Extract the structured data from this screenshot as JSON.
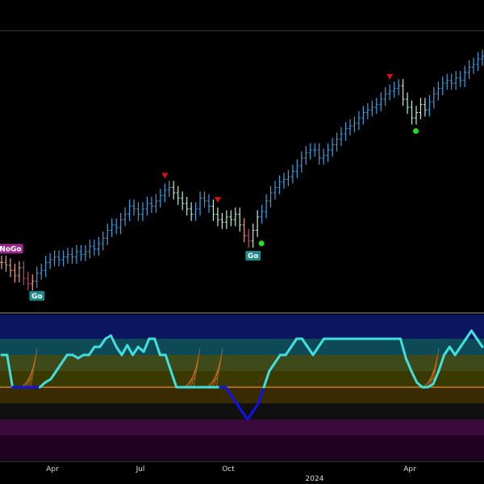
{
  "colors": {
    "background": "#000000",
    "strong_up": "#3aa0e0",
    "weak_up": "#b8f0d8",
    "weak_down": "#f0a080",
    "strong_down": "#c0487a",
    "go_badge": "#1e8a8a",
    "nogo_badge": "#9a2a8a",
    "go_dot": "#22dd22",
    "exhaustion_triangle": "#dd1111",
    "oscillator_up": "#40e0e0",
    "oscillator_strong_down": "#1111ee",
    "zero_line": "#e8901a",
    "cluster_lines": "#e07820"
  },
  "badges": [
    {
      "label": "NoGo",
      "kind": "nogo"
    },
    {
      "label": "Go",
      "kind": "go"
    },
    {
      "label": "Go",
      "kind": "go"
    }
  ],
  "x_axis": {
    "tick_labels": [
      "Apr",
      "Jul",
      "Oct",
      "Apr"
    ],
    "year_label": "2024"
  },
  "chart_data": [
    {
      "type": "ohlc",
      "title": "",
      "xlabel": "",
      "ylabel": "",
      "grid": false,
      "legend": "none",
      "categories_note": "",
      "series": [
        {
          "values": [
            {
              "close": 54,
              "trend": "weak_down"
            },
            {
              "close": 53,
              "trend": "weak_down"
            },
            {
              "close": 51,
              "trend": "weak_down"
            },
            {
              "close": 49,
              "trend": "weak_down"
            },
            {
              "close": 52,
              "trend": "weak_down"
            },
            {
              "close": 48,
              "trend": "strong_down"
            },
            {
              "close": 46,
              "trend": "strong_down"
            },
            {
              "close": 47,
              "trend": "weak_down"
            },
            {
              "close": 50,
              "trend": "strong_up"
            },
            {
              "close": 51,
              "trend": "strong_up"
            },
            {
              "close": 54,
              "trend": "strong_up"
            },
            {
              "close": 55,
              "trend": "strong_up"
            },
            {
              "close": 56,
              "trend": "strong_up"
            },
            {
              "close": 55,
              "trend": "strong_up"
            },
            {
              "close": 56,
              "trend": "strong_up"
            },
            {
              "close": 57,
              "trend": "strong_up"
            },
            {
              "close": 56,
              "trend": "strong_up"
            },
            {
              "close": 58,
              "trend": "strong_up"
            },
            {
              "close": 57,
              "trend": "strong_up"
            },
            {
              "close": 58,
              "trend": "strong_up"
            },
            {
              "close": 60,
              "trend": "strong_up"
            },
            {
              "close": 59,
              "trend": "strong_up"
            },
            {
              "close": 61,
              "trend": "strong_up"
            },
            {
              "close": 63,
              "trend": "strong_up"
            },
            {
              "close": 66,
              "trend": "strong_up"
            },
            {
              "close": 68,
              "trend": "strong_up"
            },
            {
              "close": 67,
              "trend": "strong_up"
            },
            {
              "close": 70,
              "trend": "strong_up"
            },
            {
              "close": 72,
              "trend": "strong_up"
            },
            {
              "close": 75,
              "trend": "strong_up"
            },
            {
              "close": 74,
              "trend": "strong_up"
            },
            {
              "close": 72,
              "trend": "strong_up"
            },
            {
              "close": 74,
              "trend": "strong_up"
            },
            {
              "close": 76,
              "trend": "strong_up"
            },
            {
              "close": 75,
              "trend": "strong_up"
            },
            {
              "close": 77,
              "trend": "strong_up"
            },
            {
              "close": 79,
              "trend": "strong_up"
            },
            {
              "close": 81,
              "trend": "strong_up"
            },
            {
              "close": 82,
              "trend": "strong_up"
            },
            {
              "close": 80,
              "trend": "weak_up"
            },
            {
              "close": 78,
              "trend": "weak_up"
            },
            {
              "close": 76,
              "trend": "weak_up"
            },
            {
              "close": 74,
              "trend": "weak_up"
            },
            {
              "close": 72,
              "trend": "weak_up"
            },
            {
              "close": 74,
              "trend": "strong_up"
            },
            {
              "close": 78,
              "trend": "strong_up"
            },
            {
              "close": 77,
              "trend": "strong_up"
            },
            {
              "close": 75,
              "trend": "strong_up"
            },
            {
              "close": 72,
              "trend": "weak_up"
            },
            {
              "close": 70,
              "trend": "weak_up"
            },
            {
              "close": 69,
              "trend": "weak_up"
            },
            {
              "close": 71,
              "trend": "weak_up"
            },
            {
              "close": 70,
              "trend": "weak_up"
            },
            {
              "close": 72,
              "trend": "weak_up"
            },
            {
              "close": 68,
              "trend": "weak_up"
            },
            {
              "close": 64,
              "trend": "weak_down"
            },
            {
              "close": 62,
              "trend": "strong_down"
            },
            {
              "close": 66,
              "trend": "weak_up"
            },
            {
              "close": 71,
              "trend": "weak_up"
            },
            {
              "close": 73,
              "trend": "strong_up"
            },
            {
              "close": 77,
              "trend": "strong_up"
            },
            {
              "close": 80,
              "trend": "strong_up"
            },
            {
              "close": 82,
              "trend": "strong_up"
            },
            {
              "close": 84,
              "trend": "strong_up"
            },
            {
              "close": 85,
              "trend": "strong_up"
            },
            {
              "close": 86,
              "trend": "strong_up"
            },
            {
              "close": 88,
              "trend": "strong_up"
            },
            {
              "close": 90,
              "trend": "strong_up"
            },
            {
              "close": 93,
              "trend": "strong_up"
            },
            {
              "close": 95,
              "trend": "strong_up"
            },
            {
              "close": 96,
              "trend": "strong_up"
            },
            {
              "close": 96,
              "trend": "strong_up"
            },
            {
              "close": 93,
              "trend": "strong_up"
            },
            {
              "close": 94,
              "trend": "strong_up"
            },
            {
              "close": 96,
              "trend": "strong_up"
            },
            {
              "close": 98,
              "trend": "strong_up"
            },
            {
              "close": 100,
              "trend": "strong_up"
            },
            {
              "close": 102,
              "trend": "strong_up"
            },
            {
              "close": 104,
              "trend": "strong_up"
            },
            {
              "close": 105,
              "trend": "strong_up"
            },
            {
              "close": 106,
              "trend": "strong_up"
            },
            {
              "close": 108,
              "trend": "strong_up"
            },
            {
              "close": 110,
              "trend": "strong_up"
            },
            {
              "close": 111,
              "trend": "strong_up"
            },
            {
              "close": 112,
              "trend": "strong_up"
            },
            {
              "close": 113,
              "trend": "strong_up"
            },
            {
              "close": 115,
              "trend": "strong_up"
            },
            {
              "close": 117,
              "trend": "strong_up"
            },
            {
              "close": 118,
              "trend": "strong_up"
            },
            {
              "close": 119,
              "trend": "strong_up"
            },
            {
              "close": 120,
              "trend": "strong_up"
            },
            {
              "close": 115,
              "trend": "weak_up"
            },
            {
              "close": 112,
              "trend": "weak_up"
            },
            {
              "close": 108,
              "trend": "weak_up"
            },
            {
              "close": 110,
              "trend": "weak_up"
            },
            {
              "close": 113,
              "trend": "weak_up"
            },
            {
              "close": 111,
              "trend": "weak_up"
            },
            {
              "close": 114,
              "trend": "strong_up"
            },
            {
              "close": 117,
              "trend": "strong_up"
            },
            {
              "close": 119,
              "trend": "strong_up"
            },
            {
              "close": 121,
              "trend": "strong_up"
            },
            {
              "close": 122,
              "trend": "strong_up"
            },
            {
              "close": 121,
              "trend": "strong_up"
            },
            {
              "close": 123,
              "trend": "strong_up"
            },
            {
              "close": 122,
              "trend": "strong_up"
            },
            {
              "close": 125,
              "trend": "strong_up"
            },
            {
              "close": 127,
              "trend": "strong_up"
            },
            {
              "close": 128,
              "trend": "strong_up"
            },
            {
              "close": 130,
              "trend": "strong_up"
            },
            {
              "close": 131,
              "trend": "strong_up"
            }
          ]
        }
      ],
      "ylim": [
        36,
        140
      ],
      "annotations": {
        "exhaustion_triangles_at_bar": [
          37,
          49,
          88
        ],
        "go_dots_at_bar": [
          8,
          56,
          93
        ],
        "go_dots_at_bar_extra": [
          58
        ],
        "go_badge_at_bar": [
          8,
          57
        ],
        "nogo_badge_at_bar": [
          2
        ]
      }
    },
    {
      "type": "line",
      "title": "",
      "xlabel": "",
      "ylabel": "",
      "grid": false,
      "legend": "none",
      "ylim": [
        -4.5,
        4.5
      ],
      "zero_value": 0,
      "bands": [
        {
          "from": 3,
          "to": 4.5,
          "color": "#0b1660"
        },
        {
          "from": 2,
          "to": 3,
          "color": "#0d4a55"
        },
        {
          "from": 1,
          "to": 2,
          "color": "#3e4a1a"
        },
        {
          "from": 0,
          "to": 1,
          "color": "#3a3a00"
        },
        {
          "from": -1,
          "to": 0,
          "color": "#3a2a00"
        },
        {
          "from": -2,
          "to": -1,
          "color": "#101010"
        },
        {
          "from": -3,
          "to": -2,
          "color": "#3a0a3a"
        },
        {
          "from": -4.5,
          "to": -3,
          "color": "#220022"
        }
      ],
      "series": [
        {
          "values": [
            2,
            2,
            0,
            0,
            0,
            0,
            0,
            0,
            0.3,
            0.5,
            1,
            1.5,
            2,
            2,
            1.8,
            2,
            2,
            2.5,
            2.5,
            3,
            3.2,
            2.5,
            2,
            2.6,
            2,
            2.5,
            2.2,
            3,
            3,
            2,
            2,
            1,
            0,
            0,
            0,
            0,
            0,
            0,
            0,
            0,
            0,
            0,
            -0.5,
            -1,
            -1.5,
            -2,
            -1.5,
            -1,
            0,
            1,
            1.5,
            2,
            2,
            2.5,
            3,
            3,
            2.5,
            2,
            2.5,
            3,
            3,
            3,
            3,
            3,
            3,
            3,
            3,
            3,
            3,
            3,
            3,
            3,
            3,
            3,
            1.8,
            1,
            0.3,
            0,
            0,
            0.2,
            1,
            2,
            2.5,
            2,
            2.5,
            3,
            3.5,
            3,
            2.5
          ]
        }
      ]
    }
  ]
}
